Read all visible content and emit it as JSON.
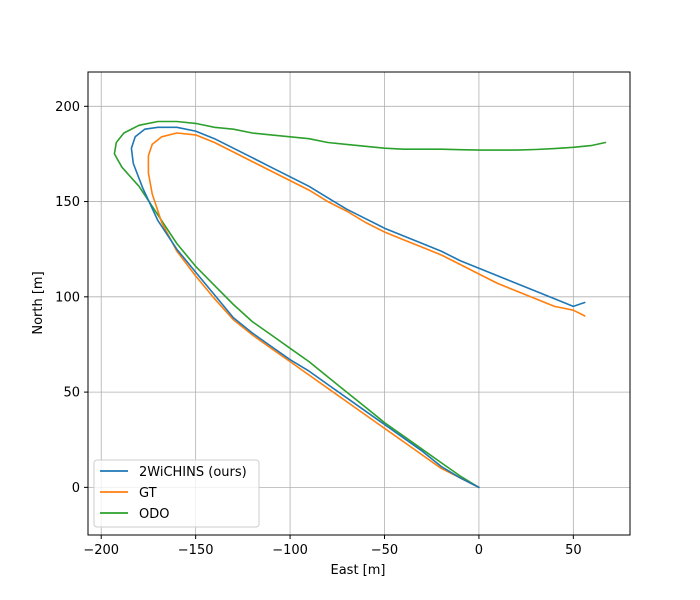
{
  "chart_data": {
    "type": "line",
    "xlabel": "East [m]",
    "ylabel": "North [m]",
    "xlim": [
      -207,
      80
    ],
    "ylim": [
      -25,
      218
    ],
    "xticks": [
      -200,
      -150,
      -100,
      -50,
      0,
      50
    ],
    "yticks": [
      0,
      50,
      100,
      150,
      200
    ],
    "xtick_labels": [
      "−200",
      "−150",
      "−100",
      "−50",
      "0",
      "50"
    ],
    "ytick_labels": [
      "0",
      "50",
      "100",
      "150",
      "200"
    ],
    "grid": true,
    "legend_position": "lower-left",
    "series": [
      {
        "name": "2WiCHINS (ours)",
        "color": "#1f77b4",
        "x": [
          0,
          -10,
          -20,
          -30,
          -40,
          -50,
          -60,
          -70,
          -80,
          -90,
          -100,
          -110,
          -120,
          -130,
          -140,
          -150,
          -160,
          -170,
          -178,
          -183,
          -184,
          -182,
          -177,
          -170,
          -160,
          -150,
          -140,
          -130,
          -120,
          -110,
          -100,
          -90,
          -80,
          -70,
          -60,
          -50,
          -40,
          -30,
          -20,
          -10,
          0,
          10,
          20,
          30,
          40,
          50,
          56
        ],
        "y": [
          0,
          5,
          11,
          19,
          26,
          33,
          40,
          47,
          54,
          61,
          67,
          74,
          81,
          89,
          101,
          113,
          125,
          140,
          157,
          170,
          178,
          184,
          188,
          189,
          189,
          187,
          183,
          178,
          173,
          168,
          163,
          158,
          152,
          146,
          141,
          136,
          132,
          128,
          124,
          119,
          115,
          111,
          107,
          103,
          99,
          95,
          97
        ]
      },
      {
        "name": "GT",
        "color": "#ff7f0e",
        "x": [
          0,
          -10,
          -20,
          -30,
          -40,
          -50,
          -60,
          -70,
          -80,
          -90,
          -100,
          -110,
          -120,
          -130,
          -140,
          -150,
          -160,
          -168,
          -173,
          -175,
          -175,
          -173,
          -168,
          -160,
          -150,
          -140,
          -130,
          -120,
          -110,
          -100,
          -90,
          -80,
          -70,
          -60,
          -50,
          -40,
          -30,
          -20,
          -10,
          0,
          10,
          20,
          30,
          40,
          50,
          56
        ],
        "y": [
          0,
          5,
          10,
          17,
          24,
          31,
          38,
          45,
          52,
          59,
          66,
          73,
          80,
          88,
          99,
          111,
          124,
          139,
          154,
          165,
          174,
          180,
          184,
          186,
          185,
          181,
          176,
          171,
          166,
          161,
          156,
          150,
          145,
          139,
          134,
          130,
          126,
          122,
          117,
          112,
          107,
          103,
          99,
          95,
          93,
          90
        ]
      },
      {
        "name": "ODO",
        "color": "#2ca02c",
        "x": [
          0,
          -10,
          -20,
          -30,
          -40,
          -50,
          -60,
          -70,
          -80,
          -90,
          -100,
          -110,
          -120,
          -130,
          -140,
          -150,
          -160,
          -170,
          -180,
          -189,
          -193,
          -192,
          -188,
          -180,
          -170,
          -160,
          -150,
          -140,
          -130,
          -120,
          -110,
          -100,
          -90,
          -80,
          -70,
          -60,
          -50,
          -40,
          -30,
          -20,
          -10,
          0,
          10,
          20,
          30,
          40,
          50,
          60,
          67
        ],
        "y": [
          0,
          6,
          13,
          20,
          27,
          34,
          42,
          50,
          58,
          66,
          73,
          80,
          87,
          96,
          106,
          116,
          128,
          143,
          158,
          168,
          175,
          181,
          186,
          190,
          192,
          192,
          191,
          189,
          188,
          186,
          185,
          184,
          183,
          181,
          180,
          179,
          178,
          177.5,
          177.5,
          177.5,
          177.2,
          177,
          177,
          177,
          177.3,
          177.8,
          178.5,
          179.5,
          181
        ]
      }
    ]
  }
}
